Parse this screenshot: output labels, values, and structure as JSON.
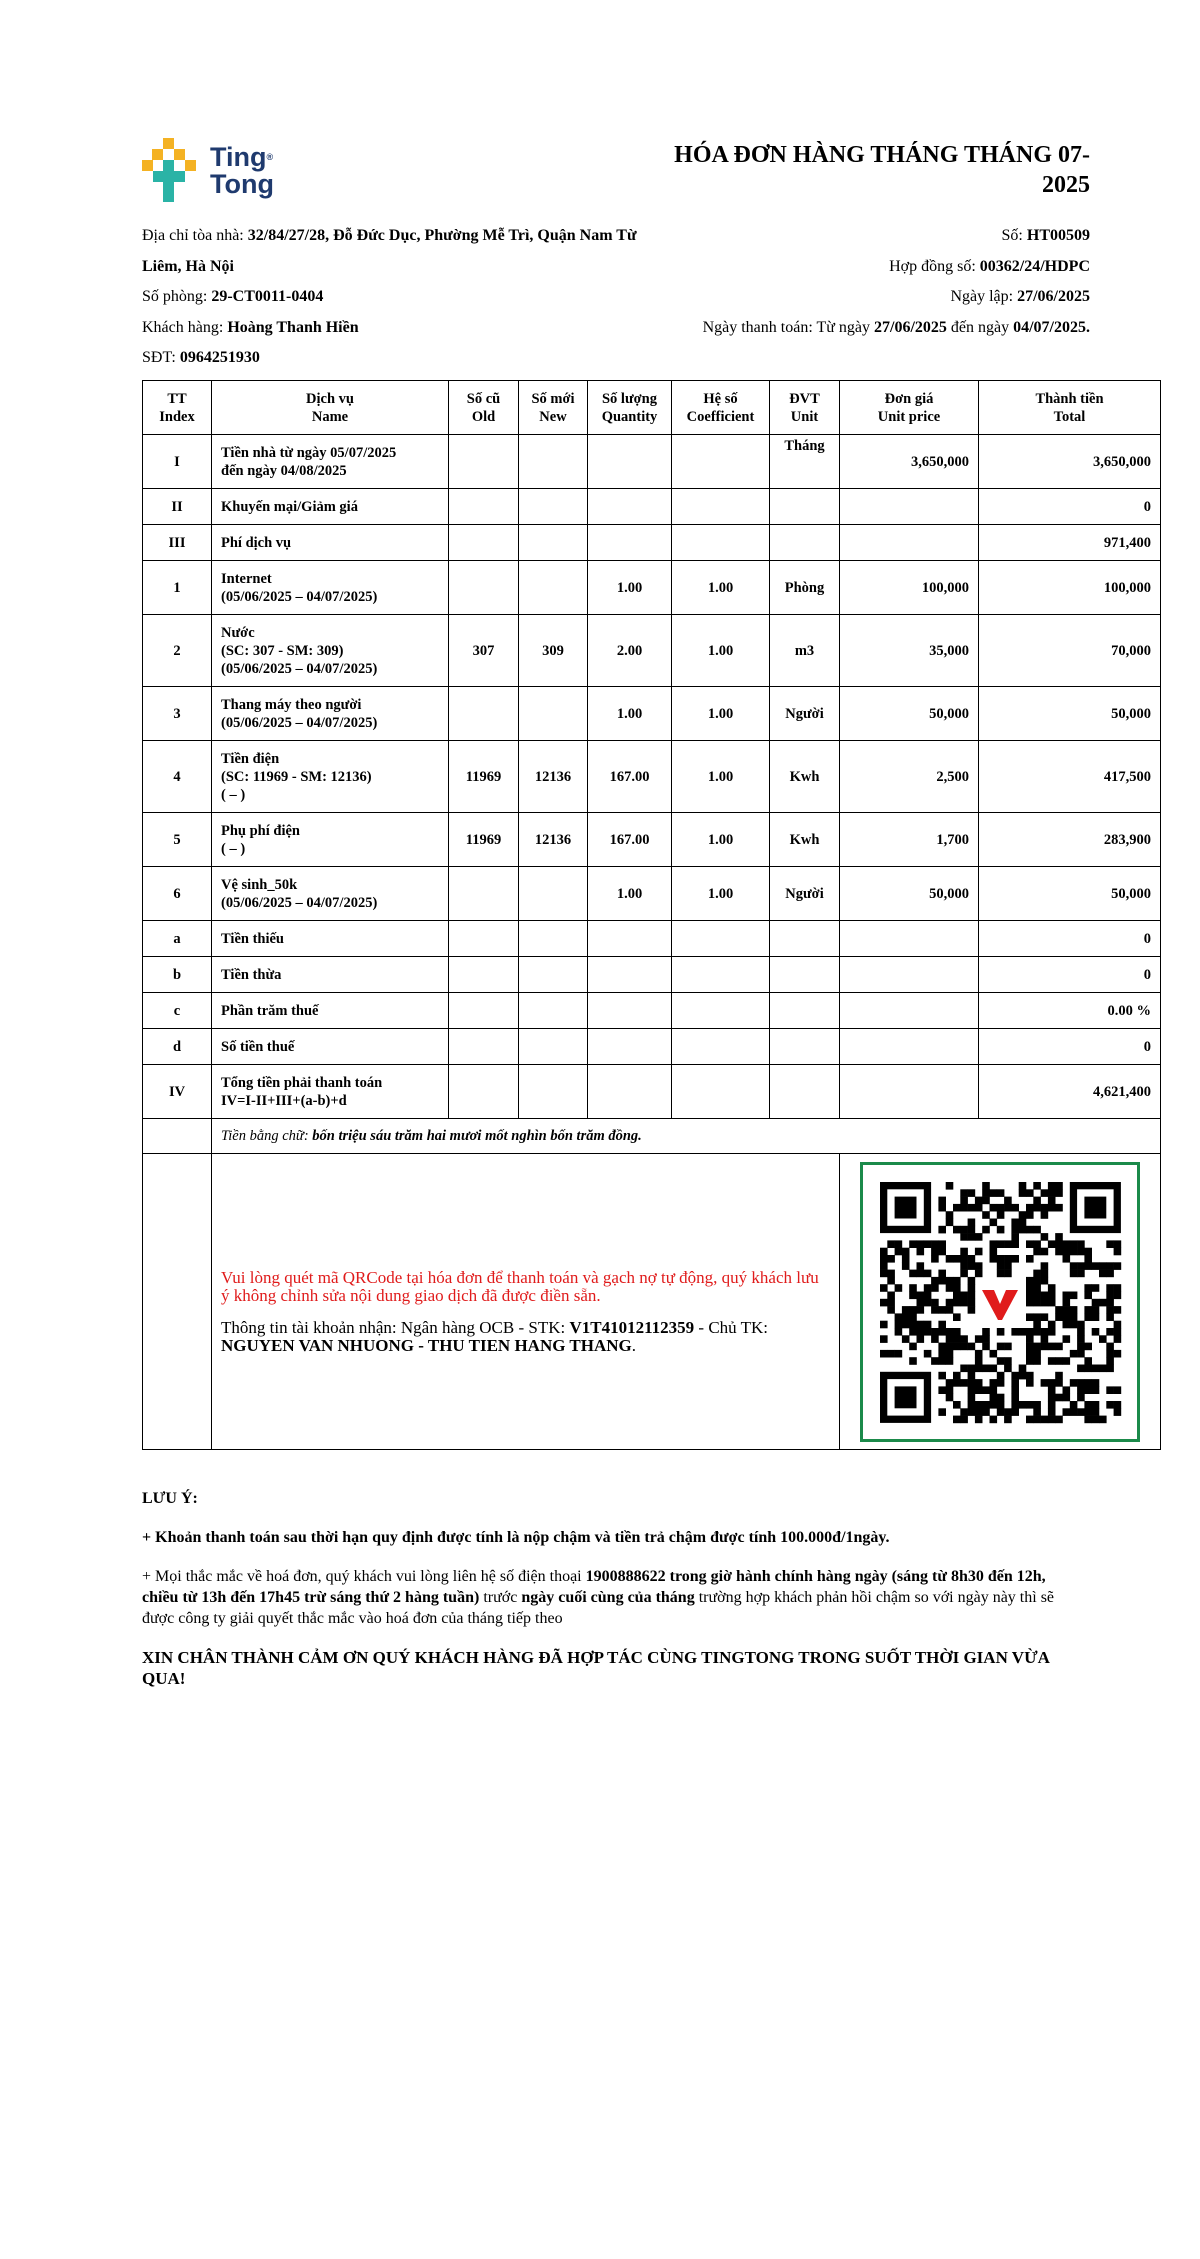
{
  "header": {
    "logo_line1": "Ting",
    "logo_mark": "®",
    "logo_line2": "Tong",
    "title": "HÓA ĐƠN HÀNG THÁNG THÁNG 07-2025"
  },
  "info": {
    "address_label": "Địa chỉ tòa nhà: ",
    "address": "32/84/27/28, Đỗ Đức Dục, Phường Mễ Trì, Quận Nam Từ Liêm, Hà Nội",
    "room_label": "Số phòng: ",
    "room": "29-CT0011-0404",
    "customer_label": "Khách hàng: ",
    "customer": "Hoàng Thanh Hiền",
    "phone_label": "SĐT: ",
    "phone": "0964251930",
    "number_label": "Số: ",
    "number": "HT00509",
    "contract_label": "Hợp đồng số: ",
    "contract": "00362/24/HDPC",
    "date_label": "Ngày lập: ",
    "date": "27/06/2025",
    "payment_label": "Ngày thanh toán: Từ ngày ",
    "payment_from": "27/06/2025",
    "payment_mid": " đến ngày ",
    "payment_to": "04/07/2025."
  },
  "table": {
    "columns": [
      {
        "vi": "TT",
        "en": "Index"
      },
      {
        "vi": "Dịch vụ",
        "en": "Name"
      },
      {
        "vi": "Số cũ",
        "en": "Old"
      },
      {
        "vi": "Số mới",
        "en": "New"
      },
      {
        "vi": "Số lượng",
        "en": "Quantity"
      },
      {
        "vi": "Hệ số",
        "en": "Coefficient"
      },
      {
        "vi": "ĐVT",
        "en": "Unit"
      },
      {
        "vi": "Đơn giá",
        "en": "Unit price"
      },
      {
        "vi": "Thành tiền",
        "en": "Total"
      }
    ],
    "rows": [
      {
        "index": "I",
        "name": [
          "Tiền nhà từ ngày 05/07/2025",
          "đến ngày 04/08/2025"
        ],
        "unit": "Tháng",
        "unit_price": "3,650,000",
        "total": "3,650,000"
      },
      {
        "index": "II",
        "name": [
          "Khuyến mại/Giảm giá"
        ],
        "total": "0"
      },
      {
        "index": "III",
        "name": [
          "Phí dịch vụ"
        ],
        "total": "971,400"
      },
      {
        "index": "1",
        "name": [
          "Internet",
          "(05/06/2025 – 04/07/2025)"
        ],
        "quantity": "1.00",
        "coefficient": "1.00",
        "unit": "Phòng",
        "unit_price": "100,000",
        "total": "100,000"
      },
      {
        "index": "2",
        "name": [
          "Nước",
          "(SC: 307 - SM: 309)",
          "(05/06/2025 – 04/07/2025)"
        ],
        "old": "307",
        "new": "309",
        "quantity": "2.00",
        "coefficient": "1.00",
        "unit": "m3",
        "unit_price": "35,000",
        "total": "70,000"
      },
      {
        "index": "3",
        "name": [
          "Thang máy theo người",
          "(05/06/2025 – 04/07/2025)"
        ],
        "quantity": "1.00",
        "coefficient": "1.00",
        "unit": "Người",
        "unit_price": "50,000",
        "total": "50,000"
      },
      {
        "index": "4",
        "name": [
          "Tiền điện",
          "(SC: 11969 - SM: 12136)",
          "( – )"
        ],
        "old": "11969",
        "new": "12136",
        "quantity": "167.00",
        "coefficient": "1.00",
        "unit": "Kwh",
        "unit_price": "2,500",
        "total": "417,500"
      },
      {
        "index": "5",
        "name": [
          "Phụ phí điện",
          "( – )"
        ],
        "old": "11969",
        "new": "12136",
        "quantity": "167.00",
        "coefficient": "1.00",
        "unit": "Kwh",
        "unit_price": "1,700",
        "total": "283,900"
      },
      {
        "index": "6",
        "name": [
          "Vệ sinh_50k",
          "(05/06/2025 – 04/07/2025)"
        ],
        "quantity": "1.00",
        "coefficient": "1.00",
        "unit": "Người",
        "unit_price": "50,000",
        "total": "50,000"
      },
      {
        "index": "a",
        "name": [
          "Tiền thiếu"
        ],
        "total": "0"
      },
      {
        "index": "b",
        "name": [
          "Tiền thừa"
        ],
        "total": "0"
      },
      {
        "index": "c",
        "name": [
          "Phần trăm thuế"
        ],
        "total": "0.00 %"
      },
      {
        "index": "d",
        "name": [
          "Số tiền thuế"
        ],
        "total": "0"
      },
      {
        "index": "IV",
        "name": [
          "Tổng tiền phải thanh toán",
          "IV=I-II+III+(a-b)+d"
        ],
        "total": "4,621,400"
      }
    ],
    "words_label": "Tiền bằng chữ: ",
    "words": "bốn triệu sáu trăm hai mươi mốt nghìn bốn trăm đồng."
  },
  "payment": {
    "notice": "Vui lòng quét mã QRCode tại hóa đơn để thanh toán và gạch nợ tự động, quý khách lưu ý không chỉnh sửa nội dung giao dịch đã được điền sẵn.",
    "account_label": "Thông tin tài khoản nhận: Ngân hàng OCB - STK: ",
    "account_number": "V1T41012112359",
    "holder_label": " - Chủ TK: ",
    "holder": "NGUYEN VAN NHUONG - THU TIEN HANG THANG",
    "holder_end": "."
  },
  "notes": {
    "heading": "LƯU Ý:",
    "late": "+ Khoản thanh toán sau thời hạn quy định được tính là nộp chậm và tiền trả chậm được tính 100.000đ/1ngày.",
    "contact_1": "+ Mọi thắc mắc về hoá đơn, quý khách vui lòng liên hệ số điện thoại ",
    "contact_2": "1900888622 trong giờ hành chính hàng ngày (sáng từ 8h30 đến 12h, chiều từ 13h đến 17h45 trừ sáng thứ 2 hàng tuần)",
    "contact_3": " trước ",
    "contact_4": "ngày cuối cùng của tháng",
    "contact_5": " trường hợp khách phản hồi chậm so với ngày này thì sẽ được công ty giải quyết thắc mắc vào hoá đơn của tháng tiếp theo",
    "thanks": "XIN CHÂN THÀNH CẢM ƠN QUÝ KHÁCH HÀNG ĐÃ HỢP TÁC CÙNG TINGTONG TRONG SUỐT THỜI GIAN VỪA QUA!"
  }
}
